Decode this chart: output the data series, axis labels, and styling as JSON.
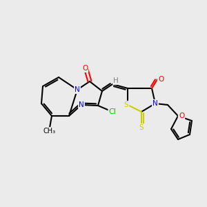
{
  "bg_color": "#ebebeb",
  "bond_color": "#000000",
  "bond_width": 1.5,
  "atom_colors": {
    "N": "#0000ff",
    "O": "#ff0000",
    "S": "#cccc00",
    "Cl": "#00cc00",
    "C": "#000000",
    "H": "#808080"
  },
  "font_size": 7.5
}
